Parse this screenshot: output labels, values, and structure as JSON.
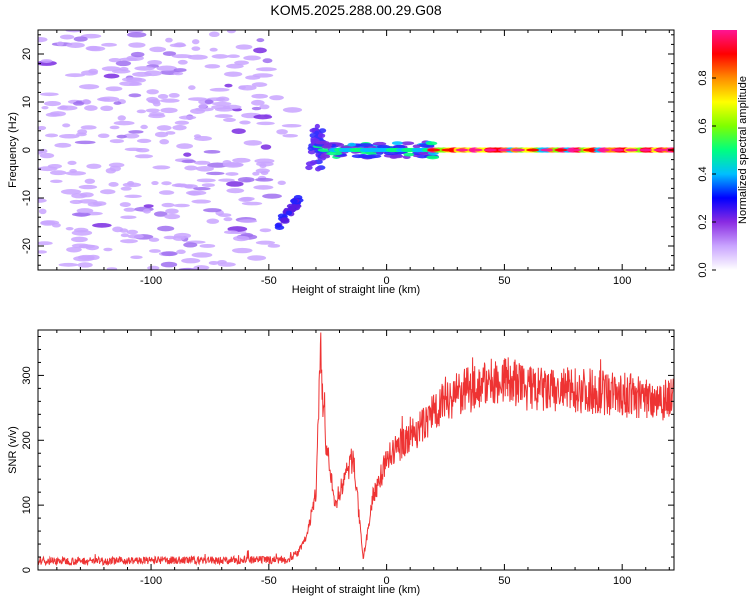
{
  "title": "KOM5.2025.288.00.29.G08",
  "chart_data": [
    {
      "type": "heatmap",
      "xlabel": "Height of straight line (km)",
      "ylabel": "Frequency (Hz)",
      "xlim": [
        -148,
        122
      ],
      "ylim": [
        -25,
        25
      ],
      "xticks": [
        -100,
        -50,
        0,
        50,
        100
      ],
      "yticks": [
        -20,
        -10,
        0,
        10,
        20
      ],
      "colorbar": {
        "label": "Normalized spectral amplitude",
        "range": [
          0.0,
          1.0
        ],
        "ticks": [
          0.0,
          0.2,
          0.4,
          0.6,
          0.8
        ],
        "colors": [
          "#ffffff",
          "#c9a4ff",
          "#8a2be2",
          "#0000ff",
          "#00bfff",
          "#00ff7f",
          "#7fff00",
          "#ffff00",
          "#ff8c00",
          "#ff0000",
          "#ff1493"
        ]
      },
      "features": {
        "trace_low_height_km": [
          -45,
          -38
        ],
        "trace_low_freq_hz": [
          -16,
          -10
        ],
        "bend_height_km": [
          -32,
          -28
        ],
        "bend_freq_hz": [
          -3,
          5
        ],
        "carrier_start_km": -28,
        "carrier_freq_hz": 0
      }
    },
    {
      "type": "line",
      "xlabel": "Height of straight line (km)",
      "ylabel": "SNR (v/v)",
      "xlim": [
        -148,
        122
      ],
      "ylim": [
        0,
        370
      ],
      "xticks": [
        -100,
        -50,
        0,
        50,
        100
      ],
      "yticks": [
        0,
        100,
        200,
        300
      ],
      "color": "#ee3333",
      "series": [
        {
          "x": [
            -148,
            -120,
            -90,
            -60,
            -42,
            -38,
            -34,
            -30,
            -28,
            -26,
            -22,
            -18,
            -14,
            -10,
            -8,
            -6,
            -2,
            0,
            5,
            10,
            15,
            20,
            25,
            30,
            35,
            40,
            50,
            60,
            70,
            80,
            90,
            100,
            110,
            122
          ],
          "y": [
            14,
            14,
            15,
            15,
            16,
            25,
            50,
            120,
            330,
            200,
            100,
            140,
            175,
            15,
            60,
            110,
            150,
            170,
            190,
            210,
            220,
            245,
            265,
            270,
            278,
            285,
            295,
            280,
            275,
            278,
            275,
            270,
            265,
            265
          ]
        }
      ]
    }
  ]
}
